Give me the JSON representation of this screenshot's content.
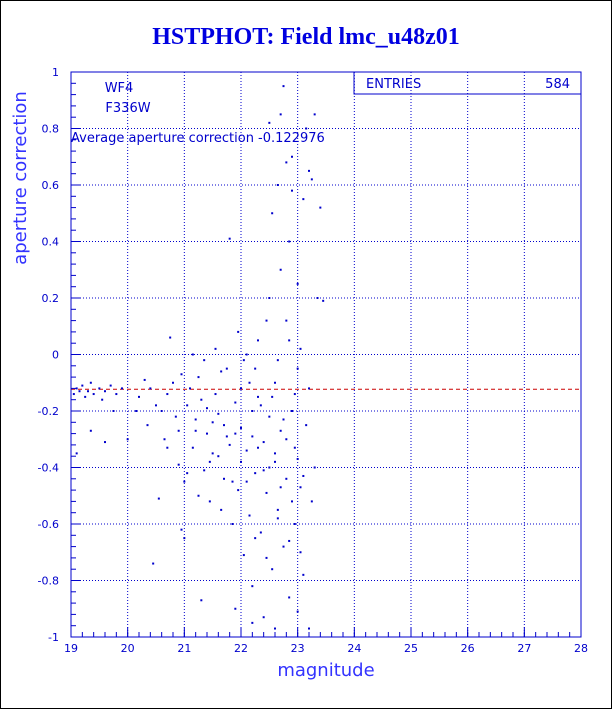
{
  "title": "HSTPHOT: Field lmc_u48z01",
  "chart_data": {
    "type": "scatter",
    "xlabel": "magnitude",
    "ylabel": "aperture correction",
    "xlim": [
      19,
      28
    ],
    "ylim": [
      -1,
      1
    ],
    "xticks": [
      "19",
      "20",
      "21",
      "22",
      "23",
      "24",
      "25",
      "26",
      "27",
      "28"
    ],
    "yticks": [
      "1",
      "0.8",
      "0.6",
      "0.4",
      "0.2",
      "0",
      "-0.2",
      "-0.4",
      "-0.6",
      "-0.8",
      "-1"
    ],
    "grid": true,
    "camera": "WF4",
    "filter": "F336W",
    "annotation": "Average aperture correction -0.122976",
    "average_line": -0.122976,
    "stats": {
      "label": "ENTRIES",
      "value": "584"
    },
    "points": [
      [
        19.05,
        -0.14
      ],
      [
        19.1,
        -0.12
      ],
      [
        19.15,
        -0.13
      ],
      [
        19.2,
        -0.11
      ],
      [
        19.25,
        -0.15
      ],
      [
        19.3,
        -0.13
      ],
      [
        19.35,
        -0.1
      ],
      [
        19.4,
        -0.14
      ],
      [
        19.5,
        -0.12
      ],
      [
        19.55,
        -0.16
      ],
      [
        19.6,
        -0.13
      ],
      [
        19.7,
        -0.11
      ],
      [
        19.75,
        -0.2
      ],
      [
        19.8,
        -0.14
      ],
      [
        19.9,
        -0.12
      ],
      [
        20.0,
        -0.3
      ],
      [
        19.1,
        -0.35
      ],
      [
        19.35,
        -0.27
      ],
      [
        19.6,
        -0.31
      ],
      [
        20.2,
        -0.15
      ],
      [
        20.3,
        -0.09
      ],
      [
        20.35,
        -0.25
      ],
      [
        20.45,
        -0.74
      ],
      [
        20.55,
        -0.51
      ],
      [
        20.6,
        -0.2
      ],
      [
        20.65,
        -0.3
      ],
      [
        20.7,
        -0.14
      ],
      [
        20.75,
        0.06
      ],
      [
        20.8,
        -0.1
      ],
      [
        20.85,
        -0.22
      ],
      [
        20.9,
        -0.39
      ],
      [
        20.95,
        -0.62
      ],
      [
        21.0,
        -0.45
      ],
      [
        21.0,
        -0.65
      ],
      [
        21.05,
        -0.18
      ],
      [
        21.1,
        -0.12
      ],
      [
        21.15,
        -0.33
      ],
      [
        21.2,
        -0.27
      ],
      [
        21.25,
        -0.08
      ],
      [
        21.3,
        -0.87
      ],
      [
        21.35,
        -0.41
      ],
      [
        21.4,
        -0.19
      ],
      [
        21.45,
        -0.52
      ],
      [
        21.5,
        -0.24
      ],
      [
        21.55,
        -0.14
      ],
      [
        21.6,
        -0.36
      ],
      [
        21.65,
        -0.06
      ],
      [
        21.7,
        -0.44
      ],
      [
        21.75,
        -0.29
      ],
      [
        21.8,
        0.41
      ],
      [
        21.85,
        -0.6
      ],
      [
        21.9,
        -0.17
      ],
      [
        21.9,
        -0.9
      ],
      [
        21.95,
        -0.48
      ],
      [
        22.0,
        -0.26
      ],
      [
        22.0,
        -0.12
      ],
      [
        22.05,
        -0.71
      ],
      [
        22.1,
        -0.34
      ],
      [
        22.1,
        0.0
      ],
      [
        22.15,
        -0.57
      ],
      [
        22.2,
        -0.2
      ],
      [
        22.2,
        -0.82
      ],
      [
        22.25,
        -0.42
      ],
      [
        22.3,
        -0.15
      ],
      [
        22.3,
        0.05
      ],
      [
        22.35,
        -0.63
      ],
      [
        22.4,
        -0.31
      ],
      [
        22.4,
        -0.93
      ],
      [
        22.45,
        -0.49
      ],
      [
        22.5,
        -0.22
      ],
      [
        22.5,
        0.2
      ],
      [
        22.55,
        -0.76
      ],
      [
        22.55,
        0.5
      ],
      [
        22.6,
        -0.38
      ],
      [
        22.6,
        -0.1
      ],
      [
        22.65,
        0.6
      ],
      [
        22.65,
        -0.55
      ],
      [
        22.7,
        0.3
      ],
      [
        22.7,
        -0.27
      ],
      [
        22.75,
        0.95
      ],
      [
        22.75,
        -0.68
      ],
      [
        22.8,
        0.12
      ],
      [
        22.8,
        -0.44
      ],
      [
        22.85,
        0.4
      ],
      [
        22.85,
        -0.86
      ],
      [
        22.9,
        -0.2
      ],
      [
        22.9,
        0.7
      ],
      [
        22.95,
        -0.33
      ],
      [
        22.95,
        -0.6
      ],
      [
        23.0,
        -0.05
      ],
      [
        23.0,
        0.25
      ],
      [
        23.05,
        -0.47
      ],
      [
        23.1,
        0.55
      ],
      [
        23.1,
        -0.78
      ],
      [
        23.15,
        -0.25
      ],
      [
        23.15,
        0.8
      ],
      [
        23.2,
        -0.12
      ],
      [
        23.25,
        -0.52
      ],
      [
        23.25,
        0.62
      ],
      [
        23.3,
        0.85
      ],
      [
        23.3,
        -0.4
      ],
      [
        23.35,
        0.2
      ],
      [
        23.4,
        0.52
      ],
      [
        23.45,
        0.19
      ],
      [
        21.2,
        -0.23
      ],
      [
        21.4,
        -0.28
      ],
      [
        21.6,
        -0.21
      ],
      [
        21.8,
        -0.32
      ],
      [
        22.0,
        -0.38
      ],
      [
        22.2,
        -0.29
      ],
      [
        22.4,
        -0.41
      ],
      [
        22.6,
        -0.35
      ],
      [
        22.8,
        -0.3
      ],
      [
        23.0,
        -0.37
      ],
      [
        21.3,
        -0.16
      ],
      [
        21.5,
        -0.35
      ],
      [
        21.7,
        -0.25
      ],
      [
        21.9,
        -0.28
      ],
      [
        22.1,
        -0.45
      ],
      [
        22.3,
        -0.33
      ],
      [
        22.5,
        -0.4
      ],
      [
        22.7,
        -0.47
      ],
      [
        22.9,
        -0.52
      ],
      [
        23.1,
        -0.43
      ],
      [
        22.15,
        -0.1
      ],
      [
        22.35,
        -0.18
      ],
      [
        22.55,
        -0.15
      ],
      [
        22.75,
        -0.23
      ],
      [
        22.95,
        -0.14
      ],
      [
        22.25,
        -0.65
      ],
      [
        22.45,
        -0.72
      ],
      [
        22.65,
        -0.58
      ],
      [
        22.85,
        -0.66
      ],
      [
        23.05,
        -0.7
      ],
      [
        22.2,
        -0.95
      ],
      [
        22.6,
        -0.97
      ],
      [
        23.0,
        -0.91
      ],
      [
        23.2,
        -0.97
      ],
      [
        21.05,
        -0.42
      ],
      [
        21.25,
        -0.5
      ],
      [
        21.45,
        -0.38
      ],
      [
        21.65,
        -0.55
      ],
      [
        21.85,
        -0.45
      ],
      [
        20.9,
        -0.27
      ],
      [
        20.7,
        -0.33
      ],
      [
        20.5,
        -0.18
      ],
      [
        20.4,
        -0.12
      ],
      [
        20.15,
        -0.2
      ],
      [
        21.15,
        0.0
      ],
      [
        21.55,
        0.02
      ],
      [
        21.95,
        0.08
      ],
      [
        22.45,
        0.12
      ],
      [
        22.05,
        -0.02
      ],
      [
        22.25,
        -0.05
      ],
      [
        22.65,
        -0.02
      ],
      [
        22.85,
        0.05
      ],
      [
        23.05,
        0.02
      ],
      [
        21.75,
        -0.05
      ],
      [
        21.35,
        -0.02
      ],
      [
        20.95,
        -0.07
      ],
      [
        22.7,
        0.85
      ],
      [
        22.9,
        0.58
      ],
      [
        23.2,
        0.65
      ],
      [
        22.5,
        0.82
      ],
      [
        22.8,
        0.68
      ]
    ]
  }
}
